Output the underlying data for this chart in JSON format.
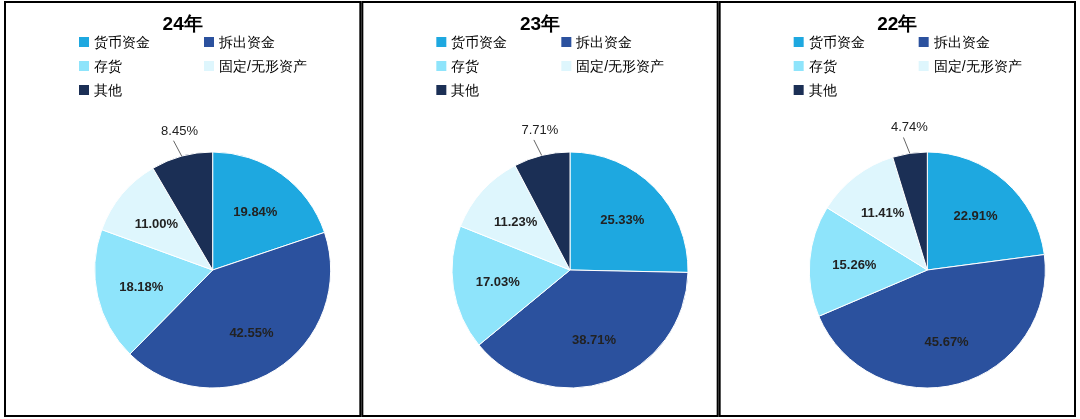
{
  "chart_data": [
    {
      "type": "pie",
      "title": "24年",
      "categories": [
        "货币资金",
        "拆出资金",
        "存货",
        "固定/无形资产",
        "其他"
      ],
      "values": [
        19.84,
        42.55,
        18.18,
        11.0,
        8.45
      ],
      "value_labels": [
        "19.84%",
        "42.55%",
        "18.18%",
        "11.00%",
        "8.45%"
      ],
      "colors": [
        "#1ea8e0",
        "#2b519e",
        "#8ee4fb",
        "#def6fd",
        "#1b2f55"
      ],
      "legend": "top"
    },
    {
      "type": "pie",
      "title": "23年",
      "categories": [
        "货币资金",
        "拆出资金",
        "存货",
        "固定/无形资产",
        "其他"
      ],
      "values": [
        25.33,
        38.71,
        17.03,
        11.23,
        7.71
      ],
      "value_labels": [
        "25.33%",
        "38.71%",
        "17.03%",
        "11.23%",
        "7.71%"
      ],
      "colors": [
        "#1ea8e0",
        "#2b519e",
        "#8ee4fb",
        "#def6fd",
        "#1b2f55"
      ],
      "legend": "top"
    },
    {
      "type": "pie",
      "title": "22年",
      "categories": [
        "货币资金",
        "拆出资金",
        "存货",
        "固定/无形资产",
        "其他"
      ],
      "values": [
        22.91,
        45.67,
        15.26,
        11.41,
        4.74
      ],
      "value_labels": [
        "22.91%",
        "45.67%",
        "15.26%",
        "11.41%",
        "4.74%"
      ],
      "colors": [
        "#1ea8e0",
        "#2b519e",
        "#8ee4fb",
        "#def6fd",
        "#1b2f55"
      ],
      "legend": "top"
    }
  ]
}
